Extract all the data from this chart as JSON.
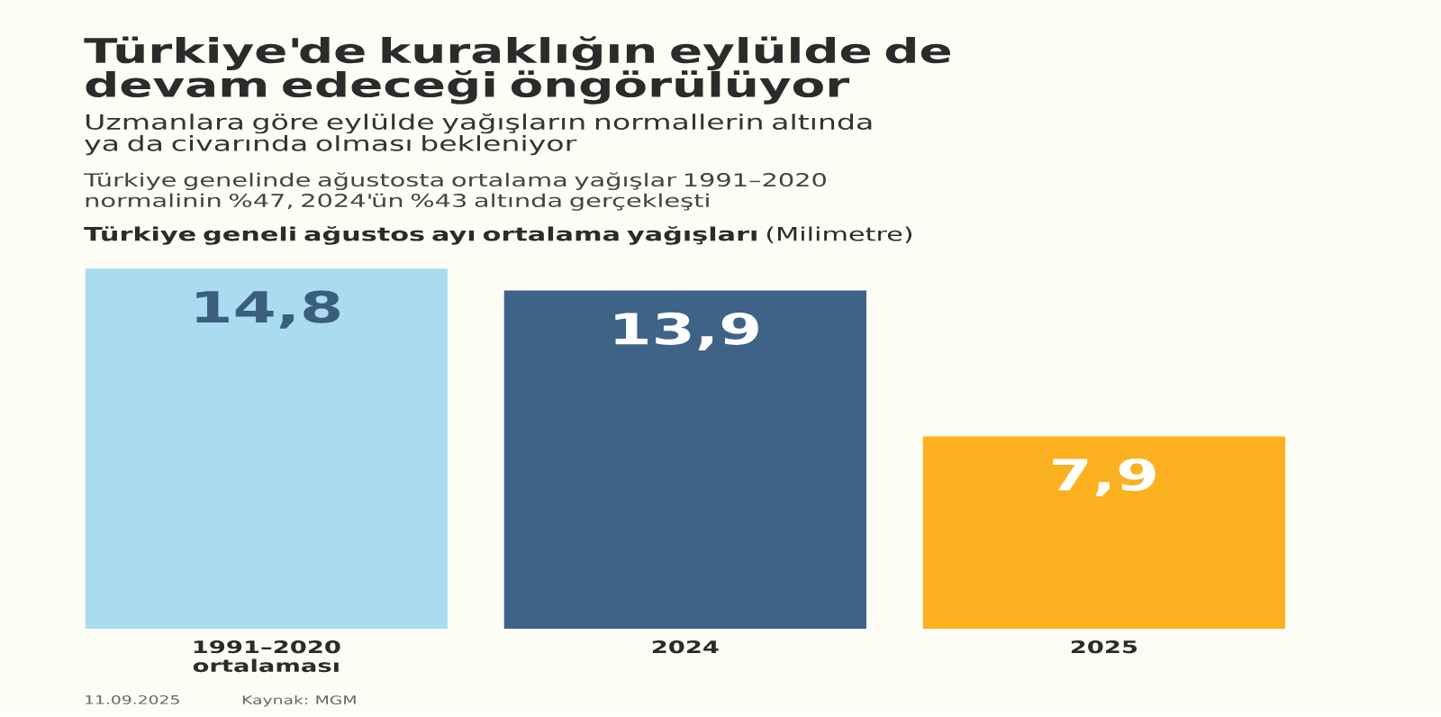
{
  "chart_data": {
    "type": "bar",
    "title": "Türkiye'de kuraklığın eylülde de devam edeceği öngörülüyor",
    "subtitle": "Uzmanlara göre eylülde yağışların normallerin altında ya da civarında olması bekleniyor",
    "categories": [
      "1991–2020 ortalaması",
      "2024",
      "2025"
    ],
    "values": [
      14.8,
      13.9,
      7.9
    ],
    "colors": [
      "#aadcf1",
      "#3f6386",
      "#fbb11f"
    ],
    "value_labels": [
      "14,8",
      "13,9",
      "7,9"
    ],
    "annotations": [
      "Türkiye genelinde ağustosta ortalama yağışlar 1991–2020 normalinin %47, 2024'ün %43 altında gerçekleşti",
      "**Türkiye geneli ağustos ayı ortalama yağışları** (Milimetre)",
      "11.09.2025",
      "Kaynak: MGM"
    ]
  }
}
